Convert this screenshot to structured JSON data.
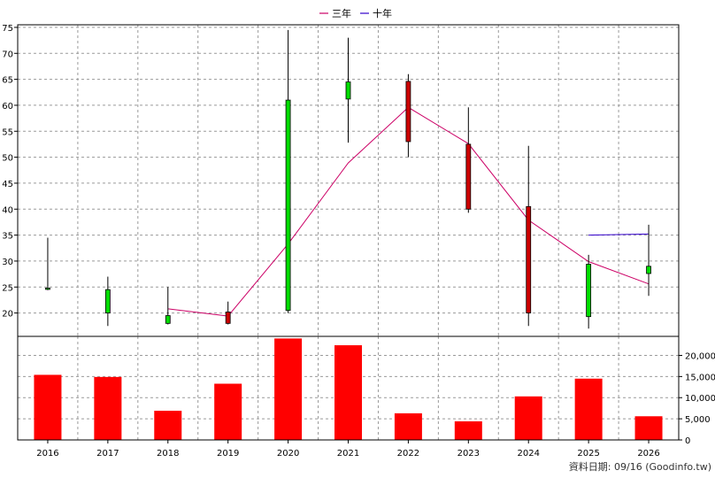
{
  "chart_data": {
    "type": "candlestick+bar",
    "legend": [
      {
        "label": "三年",
        "color": "#cc0066"
      },
      {
        "label": "十年",
        "color": "#3300cc"
      }
    ],
    "years": [
      "2016",
      "2017",
      "2018",
      "2019",
      "2020",
      "2021",
      "2022",
      "2023",
      "2024",
      "2025",
      "2026"
    ],
    "price_axis": {
      "ylim": [
        15.5,
        75.5
      ],
      "ticks": [
        20,
        25,
        30,
        35,
        40,
        45,
        50,
        55,
        60,
        65,
        70,
        75
      ]
    },
    "volume_axis": {
      "ylim": [
        0,
        24500
      ],
      "ticks": [
        0,
        5000,
        10000,
        15000,
        20000
      ],
      "tick_labels": [
        "0",
        "5,000",
        "10,000",
        "15,000",
        "20,000"
      ]
    },
    "candles": [
      {
        "year": "2016",
        "open": 24.7,
        "high": 34.5,
        "low": 24.4,
        "close": 24.8
      },
      {
        "year": "2017",
        "open": 20.0,
        "high": 27.0,
        "low": 17.5,
        "close": 24.5
      },
      {
        "year": "2018",
        "open": 18.0,
        "high": 25.0,
        "low": 17.8,
        "close": 19.5
      },
      {
        "year": "2019",
        "open": 20.2,
        "high": 22.2,
        "low": 17.8,
        "close": 18.0
      },
      {
        "year": "2020",
        "open": 20.5,
        "high": 74.5,
        "low": 20.0,
        "close": 61.0
      },
      {
        "year": "2021",
        "open": 61.2,
        "high": 73.0,
        "low": 52.8,
        "close": 64.5
      },
      {
        "year": "2022",
        "open": 64.6,
        "high": 66.0,
        "low": 50.0,
        "close": 53.0
      },
      {
        "year": "2023",
        "open": 52.5,
        "high": 59.6,
        "low": 39.3,
        "close": 40.0
      },
      {
        "year": "2024",
        "open": 40.5,
        "high": 52.2,
        "low": 17.5,
        "close": 20.0
      },
      {
        "year": "2025",
        "open": 19.3,
        "high": 31.2,
        "low": 17.0,
        "close": 29.4
      },
      {
        "year": "2026",
        "open": 27.6,
        "high": 37.0,
        "low": 23.3,
        "close": 29.0
      }
    ],
    "series": [
      {
        "name": "三年",
        "color": "#cc0066",
        "x": [
          "2018",
          "2019",
          "2020",
          "2021",
          "2022",
          "2023",
          "2024",
          "2025",
          "2026"
        ],
        "values": [
          20.8,
          19.4,
          33.3,
          48.9,
          59.6,
          52.6,
          37.9,
          29.9,
          25.6
        ]
      },
      {
        "name": "十年",
        "color": "#3300cc",
        "x": [
          "2025",
          "2026"
        ],
        "values": [
          35.0,
          35.2
        ]
      }
    ],
    "volume": {
      "x": [
        "2016",
        "2017",
        "2018",
        "2019",
        "2020",
        "2021",
        "2022",
        "2023",
        "2024",
        "2025",
        "2026"
      ],
      "values": [
        15400,
        14900,
        6900,
        13300,
        24000,
        22400,
        6300,
        4400,
        10300,
        14500,
        5600
      ]
    },
    "grid": true,
    "footer": "資料日期: 09/16  (Goodinfo.tw)"
  }
}
